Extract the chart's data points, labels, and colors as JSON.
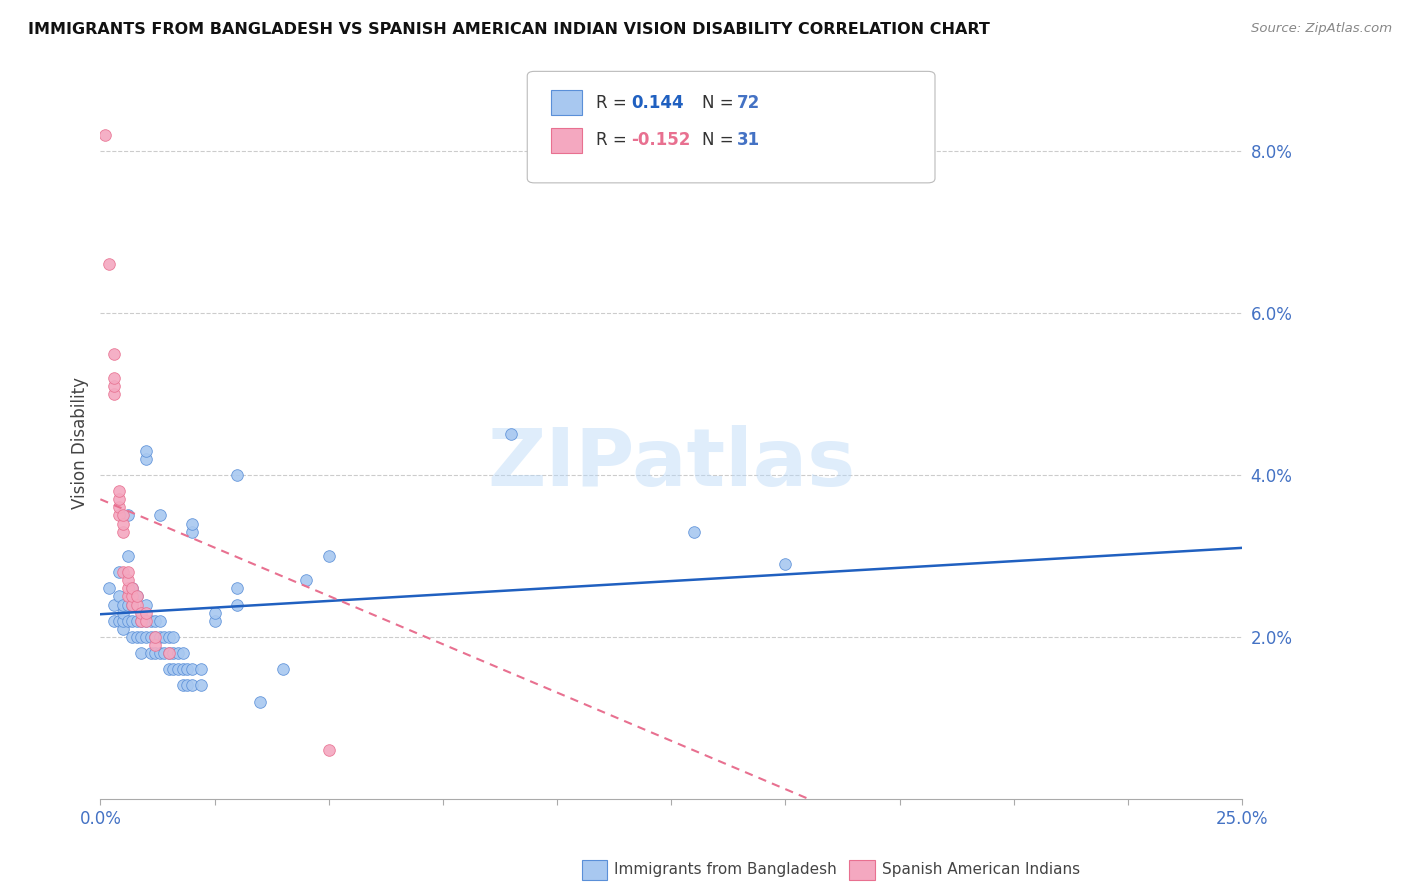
{
  "title": "IMMIGRANTS FROM BANGLADESH VS SPANISH AMERICAN INDIAN VISION DISABILITY CORRELATION CHART",
  "source": "Source: ZipAtlas.com",
  "ylabel": "Vision Disability",
  "watermark": "ZIPatlas",
  "xlim": [
    0.0,
    0.25
  ],
  "ylim": [
    0.0,
    0.088
  ],
  "yticks": [
    0.02,
    0.04,
    0.06,
    0.08
  ],
  "ytick_labels": [
    "2.0%",
    "4.0%",
    "6.0%",
    "8.0%"
  ],
  "xticks": [
    0.0,
    0.025,
    0.05,
    0.075,
    0.1,
    0.125,
    0.15,
    0.175,
    0.2,
    0.225,
    0.25
  ],
  "blue_color": "#a8c8f0",
  "pink_color": "#f4a8c0",
  "blue_edge_color": "#5a8fd8",
  "pink_edge_color": "#e87090",
  "blue_line_color": "#2060c0",
  "pink_line_color": "#e87090",
  "right_tick_color": "#4472c4",
  "blue_scatter": [
    [
      0.002,
      0.026
    ],
    [
      0.003,
      0.022
    ],
    [
      0.003,
      0.024
    ],
    [
      0.004,
      0.022
    ],
    [
      0.004,
      0.025
    ],
    [
      0.004,
      0.028
    ],
    [
      0.005,
      0.021
    ],
    [
      0.005,
      0.022
    ],
    [
      0.005,
      0.023
    ],
    [
      0.005,
      0.024
    ],
    [
      0.006,
      0.022
    ],
    [
      0.006,
      0.024
    ],
    [
      0.006,
      0.03
    ],
    [
      0.006,
      0.035
    ],
    [
      0.007,
      0.02
    ],
    [
      0.007,
      0.022
    ],
    [
      0.007,
      0.024
    ],
    [
      0.007,
      0.026
    ],
    [
      0.008,
      0.02
    ],
    [
      0.008,
      0.022
    ],
    [
      0.008,
      0.025
    ],
    [
      0.009,
      0.018
    ],
    [
      0.009,
      0.02
    ],
    [
      0.009,
      0.022
    ],
    [
      0.01,
      0.02
    ],
    [
      0.01,
      0.022
    ],
    [
      0.01,
      0.024
    ],
    [
      0.01,
      0.042
    ],
    [
      0.01,
      0.043
    ],
    [
      0.011,
      0.018
    ],
    [
      0.011,
      0.02
    ],
    [
      0.011,
      0.022
    ],
    [
      0.012,
      0.018
    ],
    [
      0.012,
      0.02
    ],
    [
      0.012,
      0.022
    ],
    [
      0.013,
      0.018
    ],
    [
      0.013,
      0.02
    ],
    [
      0.013,
      0.022
    ],
    [
      0.013,
      0.035
    ],
    [
      0.014,
      0.018
    ],
    [
      0.014,
      0.02
    ],
    [
      0.015,
      0.016
    ],
    [
      0.015,
      0.018
    ],
    [
      0.015,
      0.02
    ],
    [
      0.016,
      0.016
    ],
    [
      0.016,
      0.018
    ],
    [
      0.016,
      0.02
    ],
    [
      0.017,
      0.016
    ],
    [
      0.017,
      0.018
    ],
    [
      0.018,
      0.014
    ],
    [
      0.018,
      0.016
    ],
    [
      0.018,
      0.018
    ],
    [
      0.019,
      0.014
    ],
    [
      0.019,
      0.016
    ],
    [
      0.02,
      0.014
    ],
    [
      0.02,
      0.016
    ],
    [
      0.02,
      0.033
    ],
    [
      0.02,
      0.034
    ],
    [
      0.022,
      0.014
    ],
    [
      0.022,
      0.016
    ],
    [
      0.025,
      0.022
    ],
    [
      0.025,
      0.023
    ],
    [
      0.03,
      0.024
    ],
    [
      0.03,
      0.026
    ],
    [
      0.03,
      0.04
    ],
    [
      0.035,
      0.012
    ],
    [
      0.04,
      0.016
    ],
    [
      0.045,
      0.027
    ],
    [
      0.05,
      0.03
    ],
    [
      0.09,
      0.045
    ],
    [
      0.13,
      0.033
    ],
    [
      0.15,
      0.029
    ]
  ],
  "pink_scatter": [
    [
      0.001,
      0.082
    ],
    [
      0.002,
      0.066
    ],
    [
      0.003,
      0.055
    ],
    [
      0.003,
      0.05
    ],
    [
      0.003,
      0.051
    ],
    [
      0.003,
      0.052
    ],
    [
      0.004,
      0.035
    ],
    [
      0.004,
      0.036
    ],
    [
      0.004,
      0.037
    ],
    [
      0.004,
      0.038
    ],
    [
      0.005,
      0.033
    ],
    [
      0.005,
      0.034
    ],
    [
      0.005,
      0.035
    ],
    [
      0.005,
      0.028
    ],
    [
      0.006,
      0.025
    ],
    [
      0.006,
      0.026
    ],
    [
      0.006,
      0.027
    ],
    [
      0.006,
      0.028
    ],
    [
      0.007,
      0.024
    ],
    [
      0.007,
      0.025
    ],
    [
      0.007,
      0.026
    ],
    [
      0.008,
      0.024
    ],
    [
      0.008,
      0.025
    ],
    [
      0.009,
      0.022
    ],
    [
      0.009,
      0.023
    ],
    [
      0.01,
      0.022
    ],
    [
      0.01,
      0.023
    ],
    [
      0.012,
      0.019
    ],
    [
      0.012,
      0.02
    ],
    [
      0.015,
      0.018
    ],
    [
      0.05,
      0.006
    ]
  ],
  "blue_trendline_x": [
    0.0,
    0.25
  ],
  "blue_trendline_y": [
    0.0228,
    0.031
  ],
  "pink_trendline_x": [
    0.0,
    0.155
  ],
  "pink_trendline_y": [
    0.037,
    0.0
  ],
  "legend_items": [
    {
      "color": "#a8c8f0",
      "edge": "#5a8fd8",
      "r": "0.144",
      "n": "72"
    },
    {
      "color": "#f4a8c0",
      "edge": "#e87090",
      "r": "-0.152",
      "n": "31"
    }
  ],
  "bottom_legend": [
    {
      "color": "#a8c8f0",
      "edge": "#5a8fd8",
      "label": "Immigrants from Bangladesh"
    },
    {
      "color": "#f4a8c0",
      "edge": "#e87090",
      "label": "Spanish American Indians"
    }
  ]
}
